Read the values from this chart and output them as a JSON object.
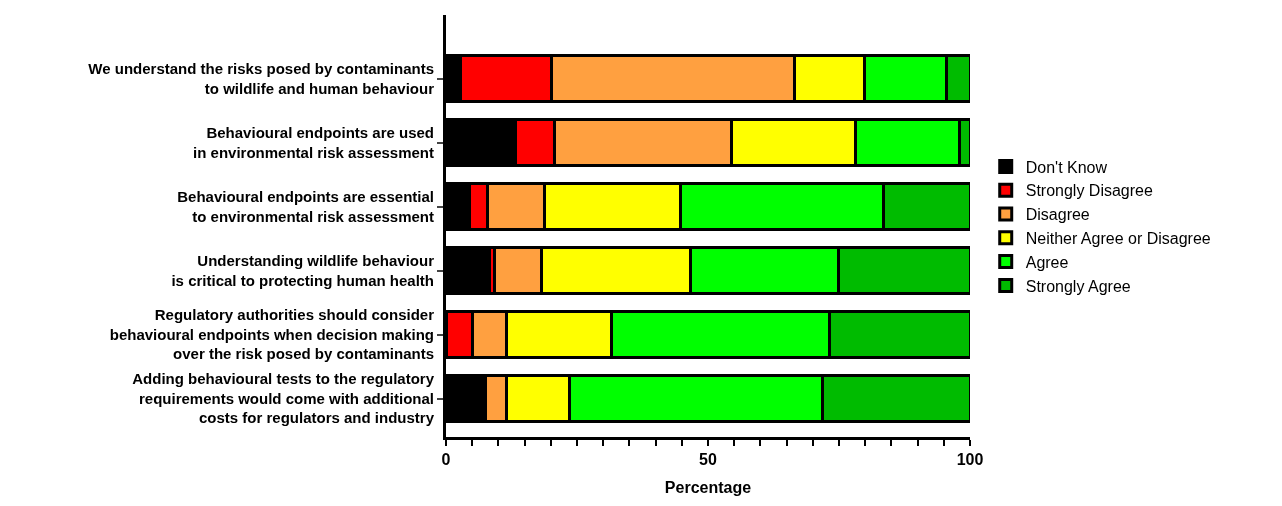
{
  "chart_data": {
    "type": "bar",
    "orientation": "horizontal",
    "stacked": true,
    "xlabel": "Percentage",
    "categories": [
      "We understand the risks posed by contaminants\nto wildlife and human behaviour",
      "Behavioural endpoints are used\nin environmental risk assessment",
      "Behavioural endpoints are essential\nto environmental risk assessment",
      "Understanding wildlife behaviour\nis critical to protecting human health",
      "Regulatory authorities should consider\nbehavioural endpoints when decision making\nover the risk posed by contaminants",
      "Adding behavioural tests to the regulatory\nrequirements would come with additional\ncosts for regulators and industry"
    ],
    "series": [
      {
        "name": "Don't Know",
        "color": "#000000",
        "values": [
          2.8,
          13.2,
          4.4,
          8.3,
          0,
          7.6
        ]
      },
      {
        "name": "Strongly Disagree",
        "color": "#ff0000",
        "values": [
          17.4,
          7.5,
          3.5,
          0.9,
          5.0,
          0
        ]
      },
      {
        "name": "Disagree",
        "color": "#ffa040",
        "values": [
          46.4,
          33.8,
          10.9,
          9.0,
          6.5,
          3.9
        ]
      },
      {
        "name": "Neither Agree or Disagree",
        "color": "#ffff00",
        "values": [
          13.3,
          23.6,
          25.9,
          28.4,
          20.0,
          12.1
        ]
      },
      {
        "name": "Agree",
        "color": "#00ff00",
        "values": [
          15.7,
          19.9,
          38.8,
          28.3,
          41.7,
          48.3
        ]
      },
      {
        "name": "Strongly Agree",
        "color": "#00bb00",
        "values": [
          4.4,
          2.0,
          16.5,
          25.1,
          26.8,
          28.1
        ]
      }
    ],
    "xlim": [
      0,
      100
    ],
    "xticks": [
      0,
      {
        "value": 5,
        "label": null
      },
      {
        "value": 10,
        "label": null
      },
      {
        "value": 15,
        "label": null
      },
      {
        "value": 20,
        "label": null
      },
      {
        "value": 25,
        "label": null
      },
      {
        "value": 30,
        "label": null
      },
      {
        "value": 35,
        "label": null
      },
      {
        "value": 40,
        "label": null
      },
      {
        "value": 45,
        "label": null
      },
      50,
      {
        "value": 55,
        "label": null
      },
      {
        "value": 60,
        "label": null
      },
      {
        "value": 65,
        "label": null
      },
      {
        "value": 70,
        "label": null
      },
      {
        "value": 75,
        "label": null
      },
      {
        "value": 80,
        "label": null
      },
      {
        "value": 85,
        "label": null
      },
      {
        "value": 90,
        "label": null
      },
      {
        "value": 95,
        "label": null
      },
      100
    ],
    "legend": "right"
  }
}
